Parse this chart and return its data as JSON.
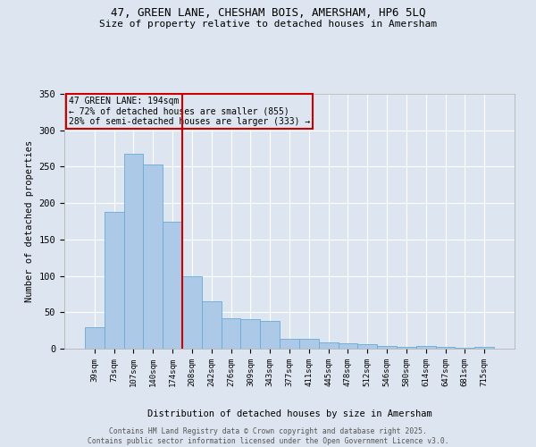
{
  "title_line1": "47, GREEN LANE, CHESHAM BOIS, AMERSHAM, HP6 5LQ",
  "title_line2": "Size of property relative to detached houses in Amersham",
  "xlabel": "Distribution of detached houses by size in Amersham",
  "ylabel": "Number of detached properties",
  "categories": [
    "39sqm",
    "73sqm",
    "107sqm",
    "140sqm",
    "174sqm",
    "208sqm",
    "242sqm",
    "276sqm",
    "309sqm",
    "343sqm",
    "377sqm",
    "411sqm",
    "445sqm",
    "478sqm",
    "512sqm",
    "546sqm",
    "580sqm",
    "614sqm",
    "647sqm",
    "681sqm",
    "715sqm"
  ],
  "values": [
    29,
    188,
    268,
    253,
    174,
    100,
    65,
    42,
    40,
    38,
    13,
    13,
    8,
    7,
    6,
    4,
    3,
    4,
    2,
    1,
    2
  ],
  "bar_color": "#adc9e8",
  "bar_edge_color": "#6aaad4",
  "bg_color": "#dde6f0",
  "grid_color": "#ffffff",
  "vline_x": 4.5,
  "vline_color": "#cc0000",
  "annotation_title": "47 GREEN LANE: 194sqm",
  "annotation_line2": "← 72% of detached houses are smaller (855)",
  "annotation_line3": "28% of semi-detached houses are larger (333) →",
  "annotation_box_color": "#cc0000",
  "footer_line1": "Contains HM Land Registry data © Crown copyright and database right 2025.",
  "footer_line2": "Contains public sector information licensed under the Open Government Licence v3.0.",
  "ylim": [
    0,
    350
  ],
  "yticks": [
    0,
    50,
    100,
    150,
    200,
    250,
    300,
    350
  ]
}
